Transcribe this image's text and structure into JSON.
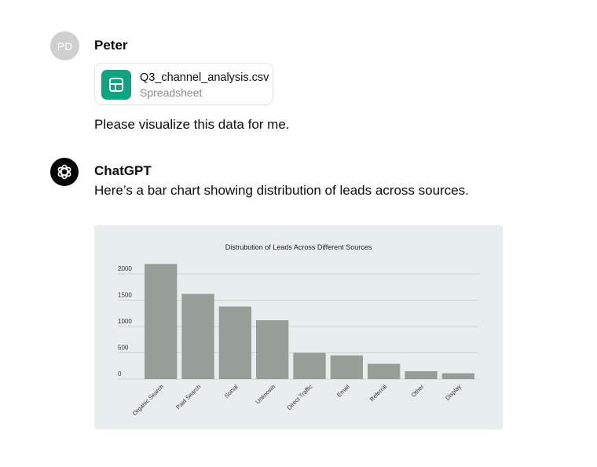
{
  "user": {
    "avatar_initials": "PD",
    "name": "Peter",
    "attachment": {
      "filename": "Q3_channel_analysis.csv",
      "type": "Spreadsheet",
      "icon": "table-icon"
    },
    "message": "Please visualize this data for me."
  },
  "assistant": {
    "name": "ChatGPT",
    "icon": "openai-logo-icon",
    "message": "Here’s a bar chart showing distribution of leads across sources."
  },
  "colors": {
    "bar": "#979e97",
    "chart_bg": "#e8eded",
    "file_icon": "#10a37f"
  },
  "chart_data": {
    "type": "bar",
    "title": "Distrubution of Leads Across Different Sources",
    "categories": [
      "Organic Search",
      "Paid Search",
      "Social",
      "Unknown",
      "Direct Traffic",
      "Email",
      "Referral",
      "Other",
      "Display"
    ],
    "values": [
      2190,
      1620,
      1380,
      1120,
      500,
      450,
      290,
      150,
      110
    ],
    "yticks": [
      "0",
      "500",
      "1000",
      "1500",
      "2000"
    ],
    "ylim": [
      0,
      2000
    ],
    "grid": true,
    "xlabel": "",
    "ylabel": ""
  }
}
